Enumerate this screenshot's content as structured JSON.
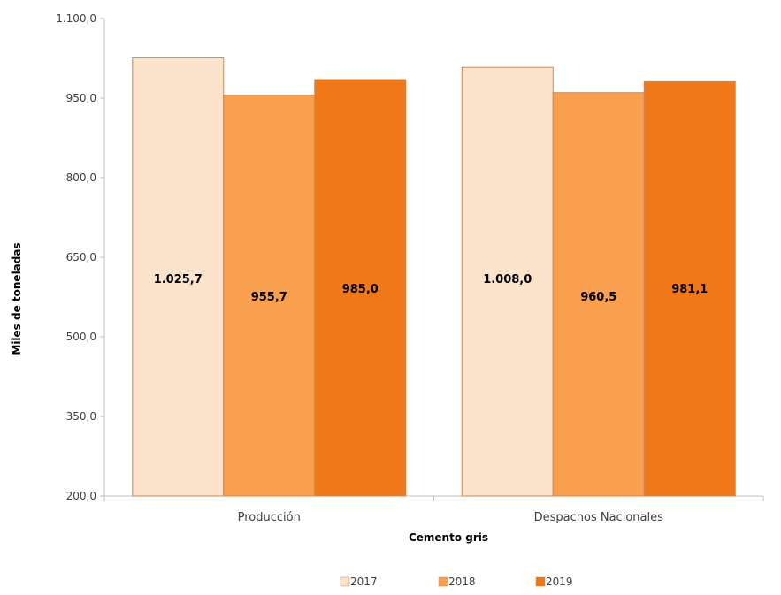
{
  "chart_data": {
    "type": "bar",
    "categories": [
      "Producción",
      "Despachos Nacionales"
    ],
    "series": [
      {
        "name": "2017",
        "values": [
          1025.7,
          1008.0
        ],
        "labels": [
          "1.025,7",
          "1.008,0"
        ],
        "color": "#FCE4CC"
      },
      {
        "name": "2018",
        "values": [
          955.7,
          960.5
        ],
        "labels": [
          "955,7",
          "960,5"
        ],
        "color": "#F8A050"
      },
      {
        "name": "2019",
        "values": [
          985.0,
          981.1
        ],
        "labels": [
          "985,0",
          "981,1"
        ],
        "color": "#F07818"
      }
    ],
    "xlabel": "Cemento gris",
    "ylabel": "Miles de toneladas",
    "ylim": [
      200,
      1100
    ],
    "yticks": [
      200,
      350,
      500,
      650,
      800,
      950,
      1100
    ],
    "ytick_labels": [
      "200,0",
      "350,0",
      "500,0",
      "650,0",
      "800,0",
      "950,0",
      "1.100,0"
    ],
    "grid": false,
    "legend_position": "bottom",
    "bar_edge_color": "#C8895A",
    "axis_color": "#BFBFBF"
  }
}
